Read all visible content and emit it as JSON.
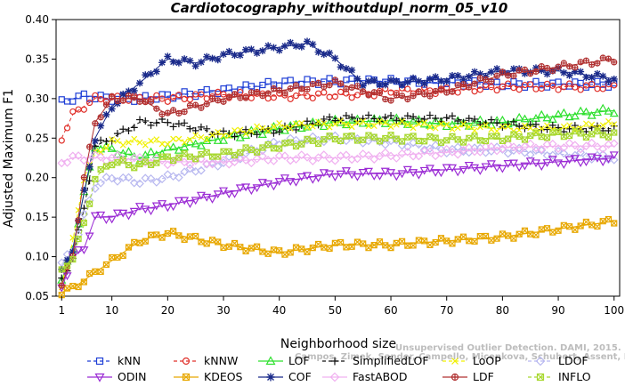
{
  "chart_data": {
    "type": "line",
    "title": "Cardiotocography_withoutdupl_norm_05_v10",
    "xlabel": "Neighborhood size",
    "ylabel": "Adjusted Maximum F1",
    "xlim": [
      0,
      101
    ],
    "ylim": [
      0.05,
      0.4
    ],
    "x_ticks": [
      1,
      10,
      20,
      30,
      40,
      50,
      60,
      70,
      80,
      90,
      100
    ],
    "y_ticks": [
      "0.05",
      "0.10",
      "0.15",
      "0.20",
      "0.25",
      "0.30",
      "0.35",
      "0.40"
    ],
    "grid": false,
    "legend_position": "bottom",
    "watermark": [
      "Campos, Zimek, Sander, Campello, Micenkova, Schubert, Assent, Houle",
      "Unsupervised Outlier Detection. DAMI, 2015."
    ],
    "series": [
      {
        "name": "kNN",
        "color": "#1f3fd6",
        "marker": "square",
        "dash": "4,3",
        "points": [
          [
            1,
            0.295
          ],
          [
            3,
            0.3
          ],
          [
            5,
            0.303
          ],
          [
            10,
            0.3
          ],
          [
            15,
            0.3
          ],
          [
            20,
            0.303
          ],
          [
            30,
            0.31
          ],
          [
            40,
            0.32
          ],
          [
            50,
            0.322
          ],
          [
            60,
            0.322
          ],
          [
            70,
            0.32
          ],
          [
            80,
            0.318
          ],
          [
            90,
            0.318
          ],
          [
            100,
            0.318
          ]
        ]
      },
      {
        "name": "kNNW",
        "color": "#e0302a",
        "marker": "circle",
        "dash": "4,3",
        "points": [
          [
            1,
            0.25
          ],
          [
            3,
            0.28
          ],
          [
            5,
            0.29
          ],
          [
            7,
            0.3
          ],
          [
            10,
            0.3
          ],
          [
            20,
            0.3
          ],
          [
            30,
            0.305
          ],
          [
            40,
            0.303
          ],
          [
            50,
            0.305
          ],
          [
            55,
            0.305
          ],
          [
            60,
            0.31
          ],
          [
            70,
            0.31
          ],
          [
            80,
            0.315
          ],
          [
            90,
            0.315
          ],
          [
            100,
            0.315
          ]
        ]
      },
      {
        "name": "LOF",
        "color": "#2ee02e",
        "marker": "triangle-up",
        "dash": "",
        "points": [
          [
            1,
            0.07
          ],
          [
            3,
            0.11
          ],
          [
            5,
            0.18
          ],
          [
            7,
            0.24
          ],
          [
            10,
            0.235
          ],
          [
            15,
            0.225
          ],
          [
            20,
            0.235
          ],
          [
            30,
            0.25
          ],
          [
            40,
            0.262
          ],
          [
            50,
            0.27
          ],
          [
            60,
            0.272
          ],
          [
            70,
            0.268
          ],
          [
            80,
            0.27
          ],
          [
            90,
            0.278
          ],
          [
            100,
            0.285
          ]
        ]
      },
      {
        "name": "SimplifiedLOF",
        "color": "#111111",
        "marker": "plus",
        "dash": "4,3",
        "points": [
          [
            1,
            0.07
          ],
          [
            3,
            0.1
          ],
          [
            5,
            0.16
          ],
          [
            7,
            0.24
          ],
          [
            10,
            0.25
          ],
          [
            15,
            0.27
          ],
          [
            20,
            0.27
          ],
          [
            30,
            0.255
          ],
          [
            40,
            0.26
          ],
          [
            50,
            0.275
          ],
          [
            60,
            0.275
          ],
          [
            70,
            0.275
          ],
          [
            80,
            0.268
          ],
          [
            90,
            0.262
          ],
          [
            100,
            0.262
          ]
        ]
      },
      {
        "name": "LoOP",
        "color": "#f0f000",
        "marker": "x",
        "dash": "4,3",
        "points": [
          [
            1,
            0.065
          ],
          [
            3,
            0.12
          ],
          [
            5,
            0.2
          ],
          [
            7,
            0.23
          ],
          [
            10,
            0.245
          ],
          [
            20,
            0.245
          ],
          [
            30,
            0.255
          ],
          [
            40,
            0.265
          ],
          [
            50,
            0.268
          ],
          [
            60,
            0.268
          ],
          [
            70,
            0.265
          ],
          [
            80,
            0.262
          ],
          [
            90,
            0.262
          ],
          [
            100,
            0.268
          ]
        ]
      },
      {
        "name": "LDOF",
        "color": "#b8b8f0",
        "marker": "diamond",
        "dash": "4,3",
        "points": [
          [
            1,
            0.09
          ],
          [
            3,
            0.11
          ],
          [
            5,
            0.15
          ],
          [
            7,
            0.19
          ],
          [
            10,
            0.2
          ],
          [
            15,
            0.195
          ],
          [
            20,
            0.2
          ],
          [
            30,
            0.22
          ],
          [
            40,
            0.245
          ],
          [
            50,
            0.25
          ],
          [
            60,
            0.245
          ],
          [
            70,
            0.235
          ],
          [
            80,
            0.235
          ],
          [
            90,
            0.23
          ],
          [
            100,
            0.225
          ]
        ]
      },
      {
        "name": "ODIN",
        "color": "#9a2ad4",
        "marker": "triangle-down",
        "dash": "",
        "points": [
          [
            1,
            0.06
          ],
          [
            3,
            0.1
          ],
          [
            5,
            0.11
          ],
          [
            7,
            0.15
          ],
          [
            10,
            0.15
          ],
          [
            15,
            0.16
          ],
          [
            20,
            0.165
          ],
          [
            30,
            0.18
          ],
          [
            40,
            0.195
          ],
          [
            50,
            0.205
          ],
          [
            60,
            0.205
          ],
          [
            70,
            0.21
          ],
          [
            80,
            0.215
          ],
          [
            90,
            0.22
          ],
          [
            100,
            0.225
          ]
        ]
      },
      {
        "name": "KDEOS",
        "color": "#e8a800",
        "marker": "square-x",
        "dash": "",
        "points": [
          [
            1,
            0.055
          ],
          [
            3,
            0.06
          ],
          [
            5,
            0.07
          ],
          [
            7,
            0.08
          ],
          [
            10,
            0.095
          ],
          [
            15,
            0.12
          ],
          [
            20,
            0.13
          ],
          [
            30,
            0.115
          ],
          [
            40,
            0.105
          ],
          [
            50,
            0.115
          ],
          [
            60,
            0.115
          ],
          [
            70,
            0.12
          ],
          [
            80,
            0.125
          ],
          [
            90,
            0.135
          ],
          [
            100,
            0.145
          ]
        ]
      },
      {
        "name": "COF",
        "color": "#1a2a8a",
        "marker": "star",
        "dash": "",
        "points": [
          [
            1,
            0.08
          ],
          [
            3,
            0.11
          ],
          [
            5,
            0.18
          ],
          [
            7,
            0.25
          ],
          [
            10,
            0.29
          ],
          [
            15,
            0.32
          ],
          [
            20,
            0.35
          ],
          [
            25,
            0.345
          ],
          [
            30,
            0.355
          ],
          [
            35,
            0.36
          ],
          [
            40,
            0.365
          ],
          [
            45,
            0.37
          ],
          [
            50,
            0.35
          ],
          [
            55,
            0.32
          ],
          [
            60,
            0.32
          ],
          [
            70,
            0.325
          ],
          [
            80,
            0.335
          ],
          [
            90,
            0.335
          ],
          [
            100,
            0.325
          ]
        ]
      },
      {
        "name": "FastABOD",
        "color": "#f0b0f0",
        "marker": "diamond",
        "dash": "",
        "points": [
          [
            1,
            0.22
          ],
          [
            3,
            0.225
          ],
          [
            5,
            0.225
          ],
          [
            10,
            0.225
          ],
          [
            20,
            0.22
          ],
          [
            30,
            0.22
          ],
          [
            40,
            0.225
          ],
          [
            50,
            0.225
          ],
          [
            60,
            0.228
          ],
          [
            70,
            0.232
          ],
          [
            80,
            0.238
          ],
          [
            90,
            0.24
          ],
          [
            100,
            0.24
          ]
        ]
      },
      {
        "name": "LDF",
        "color": "#b03030",
        "marker": "circle-plus",
        "dash": "",
        "points": [
          [
            1,
            0.065
          ],
          [
            3,
            0.1
          ],
          [
            5,
            0.2
          ],
          [
            7,
            0.27
          ],
          [
            10,
            0.3
          ],
          [
            15,
            0.3
          ],
          [
            20,
            0.28
          ],
          [
            30,
            0.3
          ],
          [
            40,
            0.31
          ],
          [
            50,
            0.32
          ],
          [
            55,
            0.31
          ],
          [
            60,
            0.3
          ],
          [
            70,
            0.31
          ],
          [
            80,
            0.33
          ],
          [
            90,
            0.34
          ],
          [
            100,
            0.35
          ]
        ]
      },
      {
        "name": "INFLO",
        "color": "#a8d830",
        "marker": "square-x",
        "dash": "4,3",
        "points": [
          [
            1,
            0.08
          ],
          [
            3,
            0.1
          ],
          [
            5,
            0.14
          ],
          [
            7,
            0.2
          ],
          [
            10,
            0.22
          ],
          [
            15,
            0.215
          ],
          [
            20,
            0.225
          ],
          [
            30,
            0.23
          ],
          [
            40,
            0.24
          ],
          [
            50,
            0.25
          ],
          [
            60,
            0.25
          ],
          [
            70,
            0.248
          ],
          [
            80,
            0.25
          ],
          [
            90,
            0.255
          ],
          [
            100,
            0.255
          ]
        ]
      }
    ]
  }
}
